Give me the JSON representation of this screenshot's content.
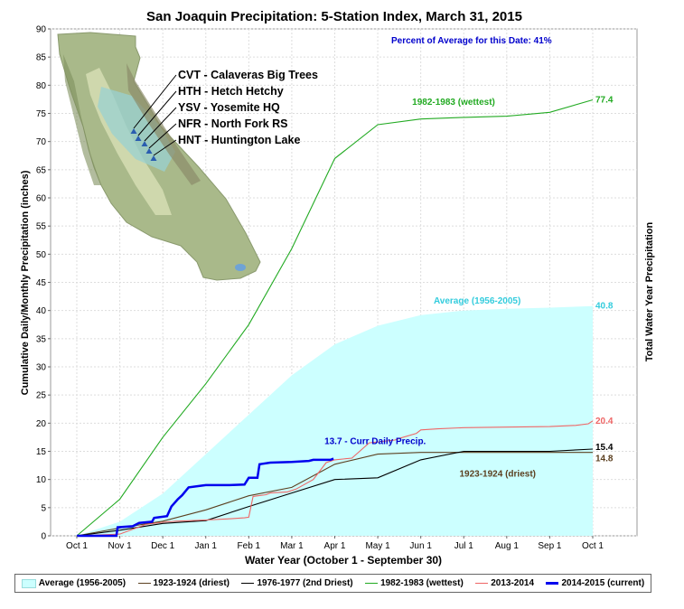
{
  "chart_data": {
    "type": "line",
    "title": "San Joaquin Precipitation: 5-Station Index, March 31, 2015",
    "subtitle": "Percent of Average for this Date: 41%",
    "xlabel": "Water Year (October 1 - September 30)",
    "ylabel": "Cumulative Daily/Monthly Precipitation (inches)",
    "y2label": "Total Water Year Precipitation",
    "ylim": [
      0,
      90
    ],
    "yticks": [
      0,
      5,
      10,
      15,
      20,
      25,
      30,
      35,
      40,
      45,
      50,
      55,
      60,
      65,
      70,
      75,
      80,
      85,
      90
    ],
    "categories": [
      "Oct 1",
      "Nov 1",
      "Dec 1",
      "Jan 1",
      "Feb 1",
      "Mar 1",
      "Apr 1",
      "May 1",
      "Jun 1",
      "Jul 1",
      "Aug 1",
      "Sep 1",
      "Oct 1"
    ],
    "grid": true,
    "legend_position": "bottom",
    "series": [
      {
        "name": "Average (1956-2005)",
        "style": "area",
        "color": "#ccffff",
        "values": [
          0,
          2.5,
          7.5,
          14.5,
          21.5,
          28.5,
          34,
          37.3,
          39.2,
          40,
          40.3,
          40.5,
          40.8
        ],
        "end_label": "40.8",
        "label_color": "#33ccdd"
      },
      {
        "name": "1923-1924 (driest)",
        "style": "line",
        "color": "#5c4020",
        "values": [
          0,
          1.4,
          2.6,
          4.6,
          7.1,
          8.6,
          12.7,
          14.5,
          14.8,
          14.8,
          14.8,
          14.8,
          14.8
        ],
        "end_label": "14.8",
        "label_color": "#5c4020"
      },
      {
        "name": "1976-1977 (2nd Driest)",
        "style": "line",
        "color": "#000000",
        "values": [
          0,
          1.0,
          2.2,
          2.7,
          5.2,
          7.6,
          10.0,
          10.3,
          13.5,
          15.0,
          15.0,
          15.0,
          15.4
        ],
        "end_label": "15.4",
        "label_color": "#000000"
      },
      {
        "name": "1982-1983 (wettest)",
        "style": "line",
        "color": "#22aa22",
        "values": [
          0,
          6.5,
          17.5,
          27,
          37.5,
          51,
          67,
          73,
          74,
          74.3,
          74.5,
          75.2,
          77.4
        ],
        "end_label": "77.4",
        "label_color": "#22aa22"
      },
      {
        "name": "2013-2014",
        "style": "line",
        "color": "#ee6666",
        "points": [
          [
            0,
            0
          ],
          [
            1.0,
            0.3
          ],
          [
            1.6,
            2.0
          ],
          [
            2.0,
            2.4
          ],
          [
            2.3,
            2.6
          ],
          [
            3.0,
            2.8
          ],
          [
            3.5,
            3.0
          ],
          [
            3.9,
            3.2
          ],
          [
            4.0,
            3.3
          ],
          [
            4.1,
            7.0
          ],
          [
            4.4,
            7.3
          ],
          [
            4.5,
            7.6
          ],
          [
            4.9,
            7.8
          ],
          [
            5.1,
            8.3
          ],
          [
            5.5,
            10.0
          ],
          [
            5.8,
            13.0
          ],
          [
            6.0,
            13.5
          ],
          [
            6.4,
            13.8
          ],
          [
            6.8,
            16.5
          ],
          [
            7.4,
            17.0
          ],
          [
            7.5,
            17.3
          ],
          [
            7.9,
            18.2
          ],
          [
            8.0,
            18.8
          ],
          [
            8.4,
            19.0
          ],
          [
            9.0,
            19.2
          ],
          [
            10.0,
            19.3
          ],
          [
            11.0,
            19.4
          ],
          [
            11.6,
            19.6
          ],
          [
            11.9,
            19.9
          ],
          [
            12.0,
            20.4
          ]
        ],
        "end_label": "20.4",
        "label_color": "#ee6666"
      },
      {
        "name": "2014-2015 (current)",
        "style": "line",
        "color": "#0000ee",
        "points": [
          [
            0,
            0
          ],
          [
            0.92,
            0
          ],
          [
            0.95,
            1.5
          ],
          [
            1.3,
            1.7
          ],
          [
            1.45,
            2.3
          ],
          [
            1.75,
            2.5
          ],
          [
            1.8,
            3.2
          ],
          [
            2.1,
            3.5
          ],
          [
            2.2,
            5.2
          ],
          [
            2.35,
            6.5
          ],
          [
            2.45,
            7.2
          ],
          [
            2.6,
            8.6
          ],
          [
            2.9,
            8.9
          ],
          [
            3.0,
            9.0
          ],
          [
            3.55,
            9.0
          ],
          [
            3.9,
            9.1
          ],
          [
            4.0,
            10.3
          ],
          [
            4.2,
            10.3
          ],
          [
            4.25,
            12.7
          ],
          [
            4.5,
            13.0
          ],
          [
            5.0,
            13.1
          ],
          [
            5.4,
            13.3
          ],
          [
            5.5,
            13.5
          ],
          [
            5.9,
            13.5
          ],
          [
            5.97,
            13.7
          ]
        ],
        "end_label": "13.7 -  Curr Daily Precip.",
        "label_color": "#0000cc"
      }
    ],
    "annotations": [
      {
        "text": "1982-1983 (wettest)",
        "color": "#22aa22",
        "x": 7.8,
        "y": 76.5
      },
      {
        "text": "Average (1956-2005)",
        "color": "#33ccdd",
        "x": 8.3,
        "y": 41.2
      },
      {
        "text": "1923-1924 (driest)",
        "color": "#5c4020",
        "x": 8.9,
        "y": 10.5
      }
    ]
  },
  "map": {
    "stations": [
      "CVT - Calaveras Big Trees",
      "HTH - Hetch Hetchy",
      "YSV - Yosemite HQ",
      "NFR - North Fork RS",
      "HNT - Huntington Lake"
    ]
  }
}
